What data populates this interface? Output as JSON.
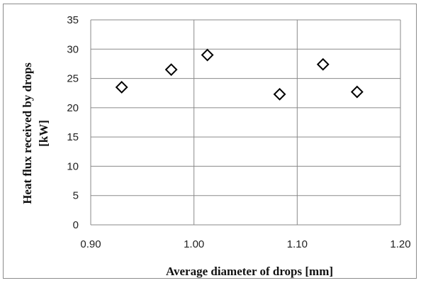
{
  "chart_data": {
    "type": "scatter",
    "xlabel": "Average diameter of drops  [mm]",
    "ylabel_lines": [
      "Heat flux  received by drops",
      "[kW]"
    ],
    "xlim": [
      0.9,
      1.2
    ],
    "ylim": [
      0,
      35
    ],
    "x_ticks": [
      "0.90",
      "1.00",
      "1.10",
      "1.20"
    ],
    "y_ticks": [
      "0",
      "5",
      "10",
      "15",
      "20",
      "25",
      "30",
      "35"
    ],
    "x_tick_values": [
      0.9,
      1.0,
      1.1,
      1.2
    ],
    "y_tick_values": [
      0,
      5,
      10,
      15,
      20,
      25,
      30,
      35
    ],
    "grid": true,
    "marker": "open-diamond",
    "series": [
      {
        "x": [
          0.93,
          0.978,
          1.013,
          1.083,
          1.125,
          1.158
        ],
        "y": [
          23.5,
          26.5,
          29.0,
          22.3,
          27.4,
          22.7
        ]
      }
    ]
  }
}
